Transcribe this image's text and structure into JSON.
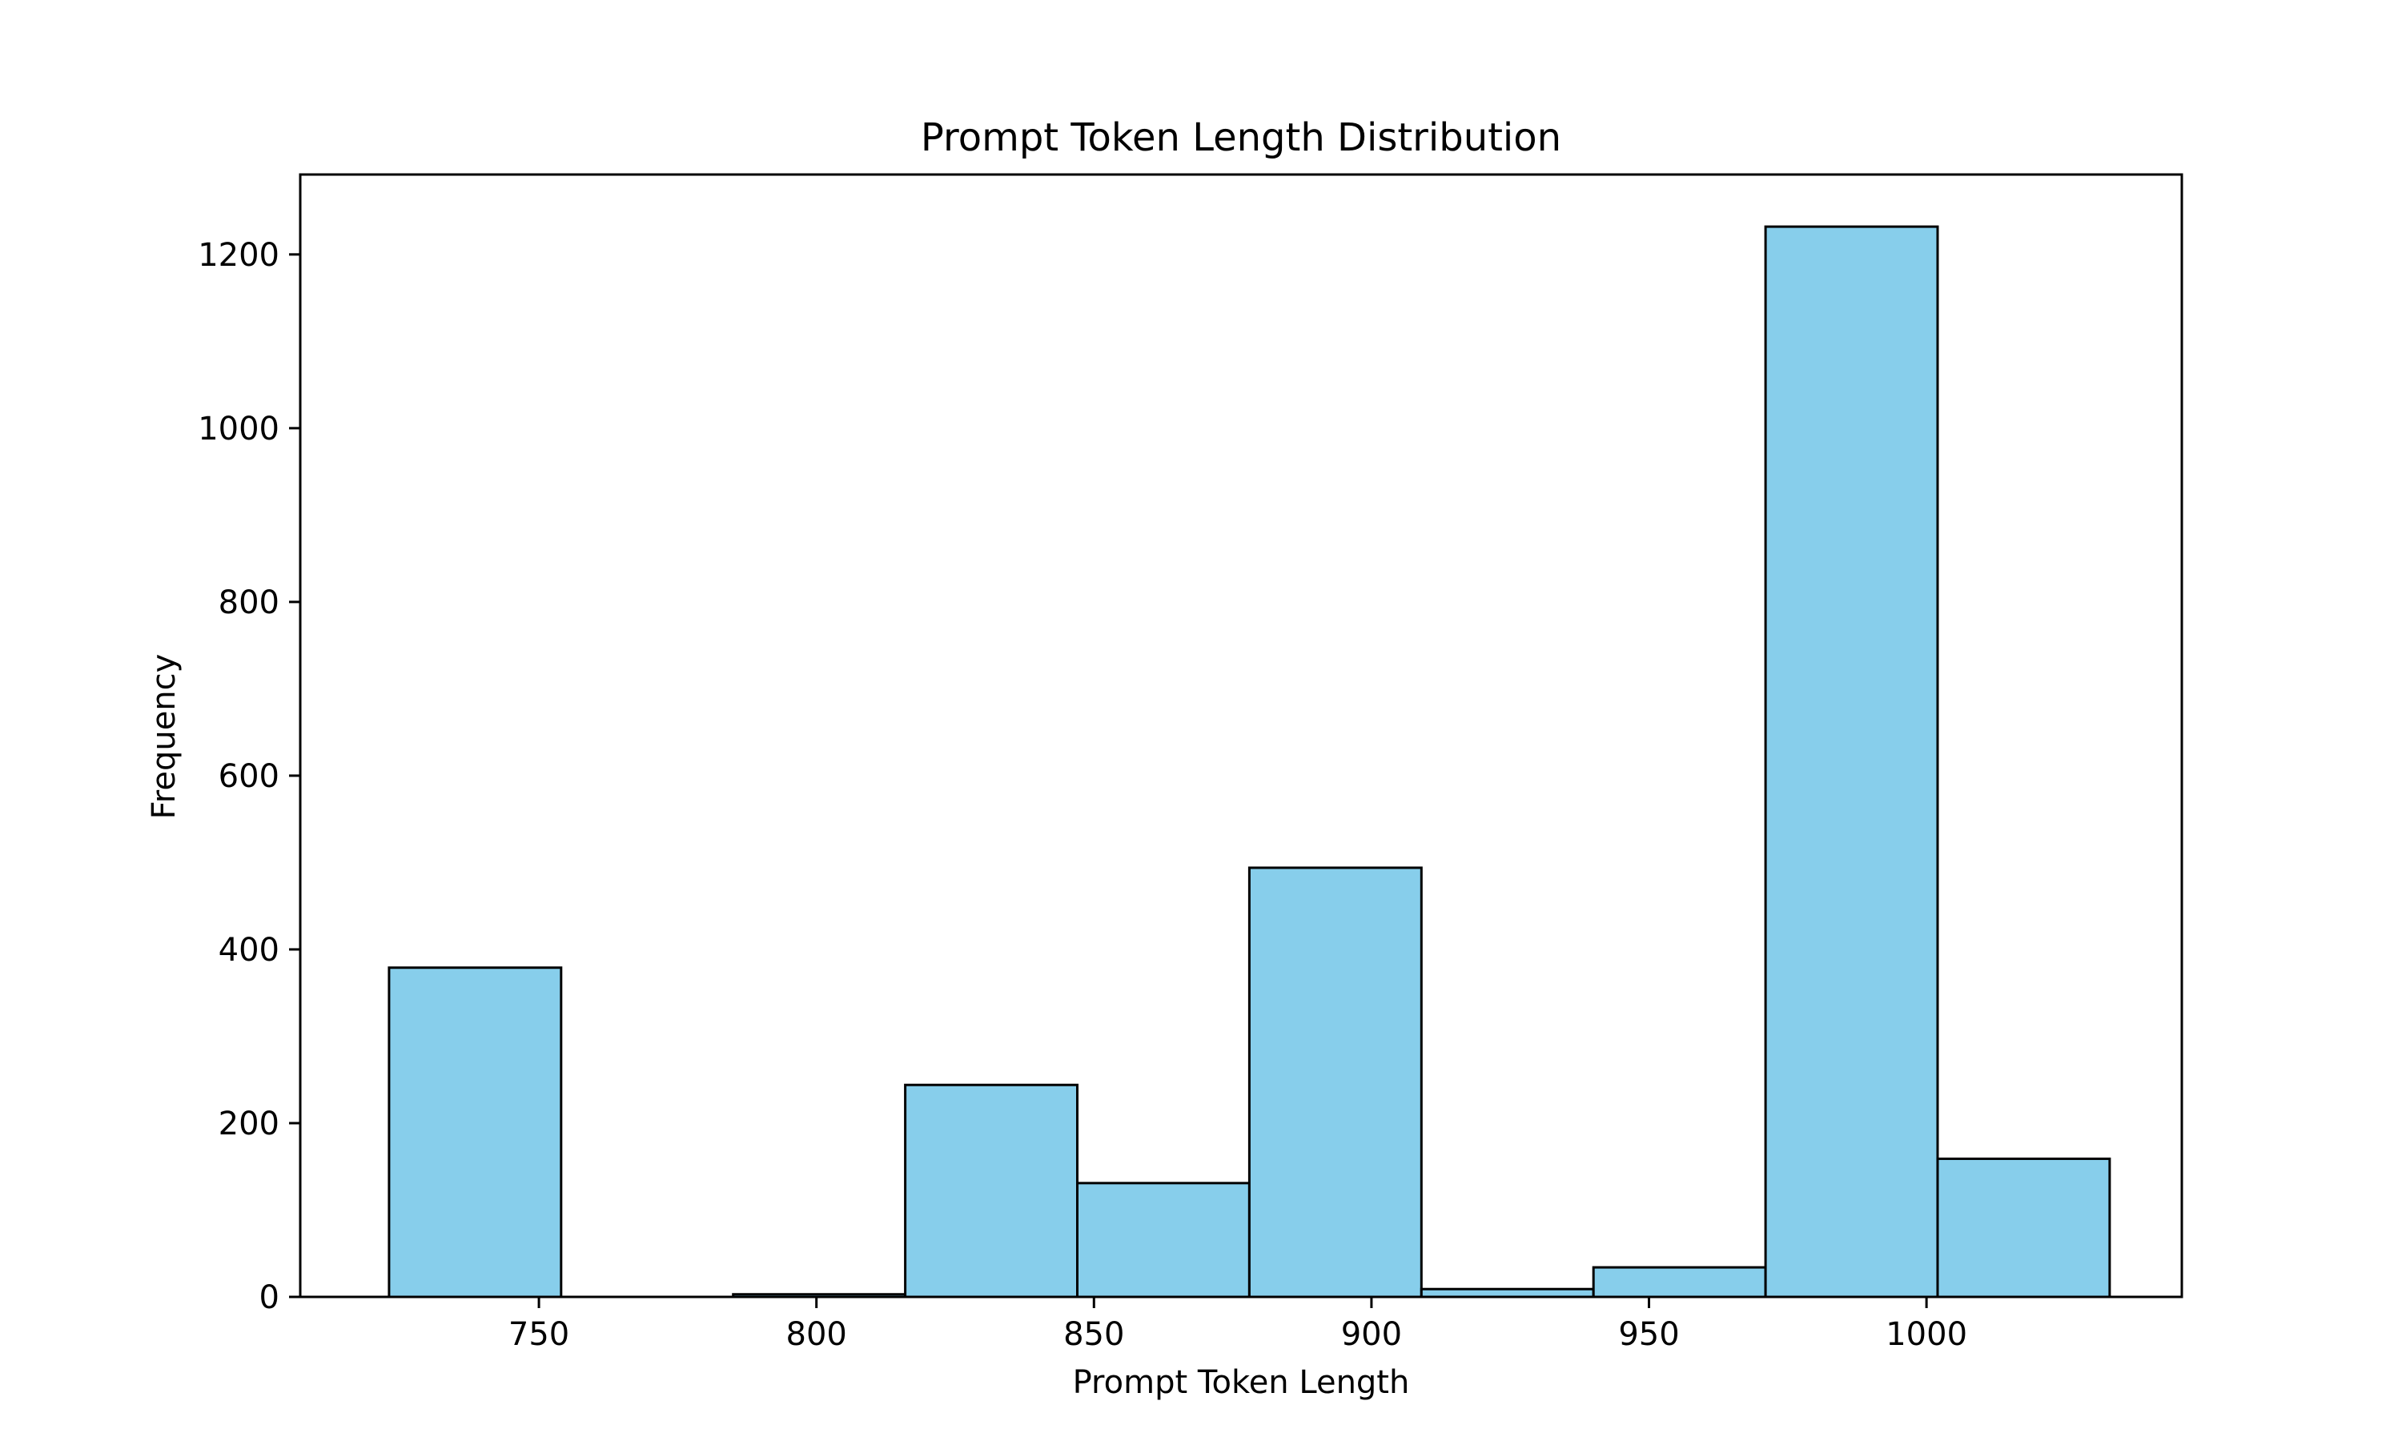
{
  "colors": {
    "bar_fill": "#87CEEB",
    "bar_edge": "#000000",
    "axis": "#000000",
    "background": "#ffffff"
  },
  "chart_data": {
    "type": "bar",
    "title": "Prompt Token Length Distribution",
    "xlabel": "Prompt Token Length",
    "ylabel": "Frequency",
    "xlim": [
      707,
      1046
    ],
    "ylim": [
      0,
      1292
    ],
    "x_ticks": [
      750,
      800,
      850,
      900,
      950,
      1000
    ],
    "y_ticks": [
      0,
      200,
      400,
      600,
      800,
      1000,
      1200
    ],
    "grid": false,
    "bins": [
      {
        "start": 723,
        "end": 754,
        "value": 379
      },
      {
        "start": 754,
        "end": 785,
        "value": 0
      },
      {
        "start": 785,
        "end": 816,
        "value": 3
      },
      {
        "start": 816,
        "end": 847,
        "value": 244
      },
      {
        "start": 847,
        "end": 878,
        "value": 131
      },
      {
        "start": 878,
        "end": 909,
        "value": 494
      },
      {
        "start": 909,
        "end": 940,
        "value": 9
      },
      {
        "start": 940,
        "end": 971,
        "value": 34
      },
      {
        "start": 971,
        "end": 1002,
        "value": 1232
      },
      {
        "start": 1002,
        "end": 1033,
        "value": 159
      }
    ]
  }
}
